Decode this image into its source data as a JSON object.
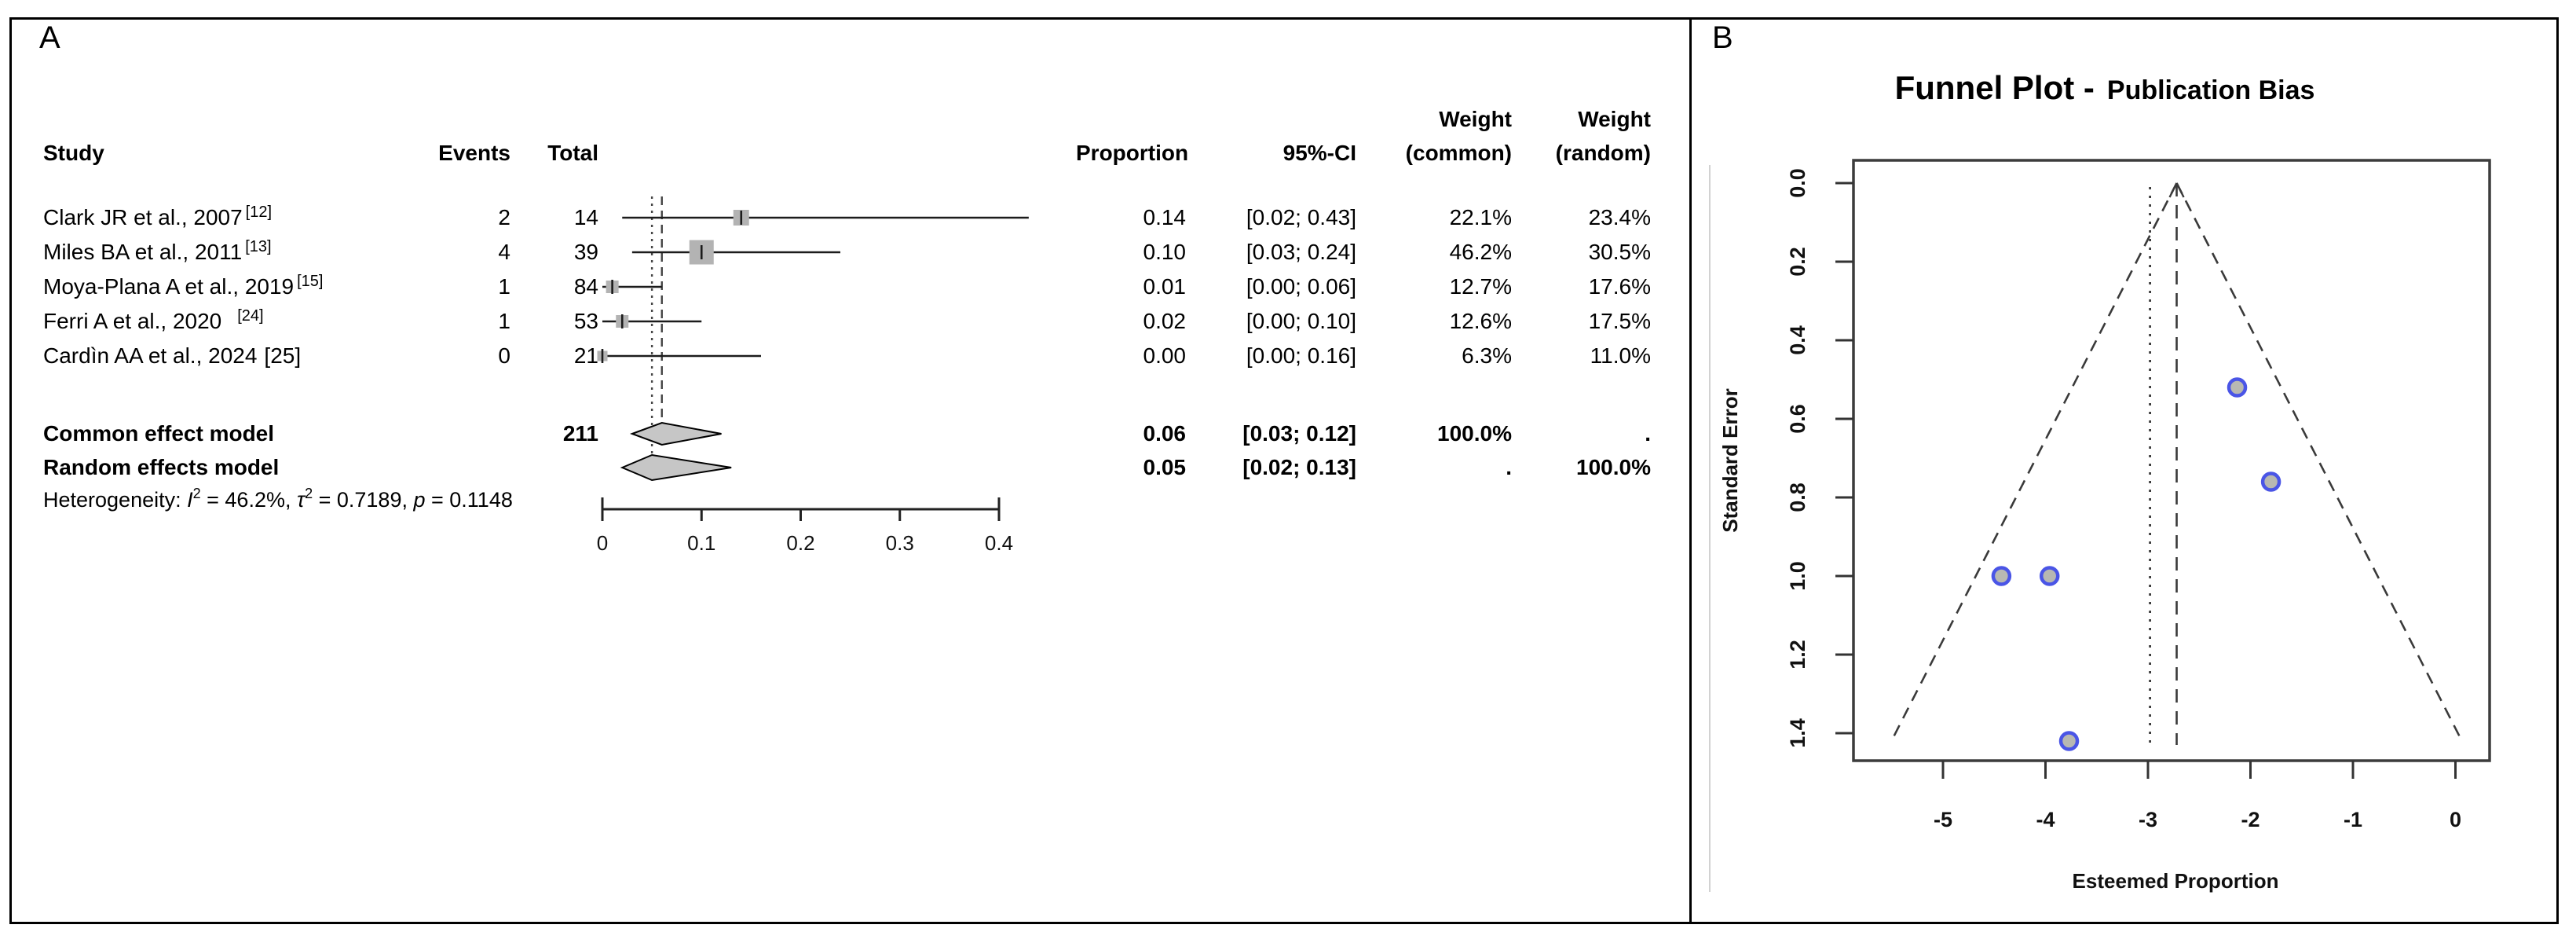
{
  "forest": {
    "label": "A",
    "headers": {
      "study": "Study",
      "events": "Events",
      "total": "Total",
      "proportion": "Proportion",
      "ci": "95%-CI",
      "weight": "Weight",
      "common": "(common)",
      "random": "(random)"
    },
    "rows": [
      {
        "study": "Clark JR et al., 2007",
        "ref": "[12]",
        "ref_sup": true,
        "ref_gap": false,
        "events": "2",
        "total": "14",
        "prop_text": "0.14",
        "proportion": 0.14,
        "ci_low": 0.02,
        "ci_high": 0.43,
        "ci_text": "[0.02; 0.43]",
        "weight_common": "22.1%",
        "weight_random": "23.4%"
      },
      {
        "study": "Miles BA et al., 2011",
        "ref": "[13]",
        "ref_sup": true,
        "ref_gap": false,
        "events": "4",
        "total": "39",
        "prop_text": "0.10",
        "proportion": 0.1,
        "ci_low": 0.03,
        "ci_high": 0.24,
        "ci_text": "[0.03; 0.24]",
        "weight_common": "46.2%",
        "weight_random": "30.5%"
      },
      {
        "study": "Moya-Plana A et al., 2019",
        "ref": "[15]",
        "ref_sup": true,
        "ref_gap": false,
        "events": "1",
        "total": "84",
        "prop_text": "0.01",
        "proportion": 0.01,
        "ci_low": 0.0,
        "ci_high": 0.06,
        "ci_text": "[0.00; 0.06]",
        "weight_common": "12.7%",
        "weight_random": "17.6%"
      },
      {
        "study": "Ferri A et al., 2020",
        "ref": "[24]",
        "ref_sup": true,
        "ref_gap": true,
        "events": "1",
        "total": "53",
        "prop_text": "0.02",
        "proportion": 0.02,
        "ci_low": 0.0,
        "ci_high": 0.1,
        "ci_text": "[0.00; 0.10]",
        "weight_common": "12.6%",
        "weight_random": "17.5%"
      },
      {
        "study": "Cardìn AA et al., 2024",
        "ref": "[25]",
        "ref_sup": false,
        "ref_gap": false,
        "events": "0",
        "total": "21",
        "prop_text": "0.00",
        "proportion": 0.0,
        "ci_low": 0.0,
        "ci_high": 0.16,
        "ci_text": "[0.00; 0.16]",
        "weight_common": "6.3%",
        "weight_random": "11.0%"
      }
    ],
    "summaries": [
      {
        "label": "Common effect model",
        "total": "211",
        "prop_text": "0.06",
        "proportion": 0.06,
        "ci_low": 0.03,
        "ci_high": 0.12,
        "ci_text": "[0.03; 0.12]",
        "weight_common": "100.0%",
        "weight_random": "."
      },
      {
        "label": "Random effects model",
        "total": "",
        "prop_text": "0.05",
        "proportion": 0.05,
        "ci_low": 0.02,
        "ci_high": 0.13,
        "ci_text": "[0.02; 0.13]",
        "weight_common": ".",
        "weight_random": "100.0%"
      }
    ],
    "heterogeneity": {
      "s0": "Heterogeneity: ",
      "i1": "I",
      "sup1": "2",
      "s1": " = 46.2%, ",
      "i2": "τ",
      "sup2": "2",
      "s2": " = 0.7189, ",
      "i3": "p",
      "s3": " = 0.1148"
    },
    "axis": {
      "ticks": [
        0,
        0.1,
        0.2,
        0.3,
        0.4
      ],
      "labels": [
        "0",
        "0.1",
        "0.2",
        "0.3",
        "0.4"
      ]
    },
    "guides": {
      "common": 0.06,
      "random": 0.05
    },
    "colors": {
      "square": "#b3b3b3",
      "diamond_fill": "#c6c6c6",
      "line": "#1c1c1c"
    }
  },
  "funnel": {
    "label": "B",
    "title_main": "Funnel Plot -",
    "title_sub": "Publication Bias",
    "xlabel": "Esteemed Proportion",
    "ylabel": "Standard Error",
    "x_ticks": [
      "-5",
      "-4",
      "-3",
      "-2",
      "-1",
      "0"
    ],
    "x_tick_values": [
      -5,
      -4,
      -3,
      -2,
      -1,
      0
    ],
    "y_ticks": [
      "0.0",
      "0.2",
      "0.4",
      "0.6",
      "0.8",
      "1.0",
      "1.2",
      "1.4"
    ],
    "y_tick_values": [
      0,
      0.2,
      0.4,
      0.6,
      0.8,
      1.0,
      1.2,
      1.4
    ],
    "apex_x": -2.72,
    "dotted_x": -2.98,
    "funnel_z": 1.96,
    "points": [
      {
        "x": -2.13,
        "se": 0.52
      },
      {
        "x": -1.8,
        "se": 0.76
      },
      {
        "x": -4.43,
        "se": 1.0
      },
      {
        "x": -3.96,
        "se": 1.0
      },
      {
        "x": -3.77,
        "se": 1.42
      }
    ],
    "colors": {
      "point_fill": "#b8b8b2",
      "point_stroke": "#4a55e6",
      "dash": "#3a3a3a"
    }
  },
  "chart_data": [
    {
      "type": "table",
      "render": "forest-plot",
      "title": "Meta-analysis forest plot",
      "columns": [
        "Study",
        "Events",
        "Total",
        "Proportion",
        "95%-CI",
        "Weight (common)",
        "Weight (random)"
      ],
      "rows": [
        [
          "Clark JR et al., 2007 [12]",
          2,
          14,
          0.14,
          "[0.02; 0.43]",
          "22.1%",
          "23.4%"
        ],
        [
          "Miles BA et al., 2011 [13]",
          4,
          39,
          0.1,
          "[0.03; 0.24]",
          "46.2%",
          "30.5%"
        ],
        [
          "Moya-Plana A et al., 2019 [15]",
          1,
          84,
          0.01,
          "[0.00; 0.06]",
          "12.7%",
          "17.6%"
        ],
        [
          "Ferri A et al., 2020 [24]",
          1,
          53,
          0.02,
          "[0.00; 0.10]",
          "12.6%",
          "17.5%"
        ],
        [
          "Cardìn AA et al., 2024 [25]",
          0,
          21,
          0.0,
          "[0.00; 0.16]",
          "6.3%",
          "11.0%"
        ]
      ],
      "common_effect": {
        "total": 211,
        "proportion": 0.06,
        "ci": [
          0.03,
          0.12
        ],
        "weight_common": "100.0%"
      },
      "random_effects": {
        "proportion": 0.05,
        "ci": [
          0.02,
          0.13
        ],
        "weight_random": "100.0%"
      },
      "heterogeneity": {
        "I2": "46.2%",
        "tau2": 0.7189,
        "p": 0.1148
      },
      "xlim": [
        0,
        0.43
      ],
      "x_ticks": [
        0,
        0.1,
        0.2,
        0.3,
        0.4
      ],
      "guide_lines": {
        "dashed_common": 0.06,
        "dotted_random": 0.05
      }
    },
    {
      "type": "scatter",
      "render": "funnel-plot",
      "title": "Funnel Plot - Publication Bias",
      "xlabel": "Esteemed Proportion",
      "ylabel": "Standard Error",
      "x": [
        -2.13,
        -1.8,
        -4.43,
        -3.96,
        -3.77
      ],
      "y": [
        0.52,
        0.76,
        1.0,
        1.0,
        1.42
      ],
      "xlim": [
        -5.87,
        0.33
      ],
      "ylim": [
        0,
        1.47
      ],
      "y_axis_reversed": true,
      "x_ticks": [
        -5,
        -4,
        -3,
        -2,
        -1,
        0
      ],
      "y_ticks": [
        0,
        0.2,
        0.4,
        0.6,
        0.8,
        1.0,
        1.2,
        1.4
      ],
      "center_dashed_line_x": -2.72,
      "dotted_line_x": -2.98,
      "pseudo_ci_z": 1.96,
      "grid": false,
      "legend": false
    }
  ]
}
